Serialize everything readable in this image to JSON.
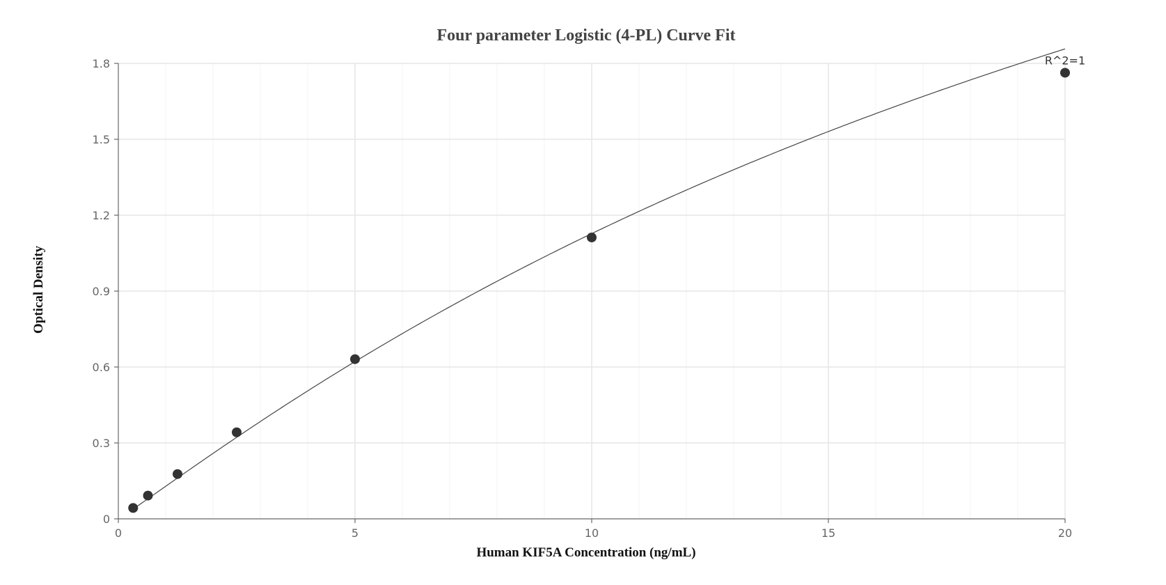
{
  "chart_data": {
    "type": "scatter",
    "title": "Four parameter Logistic (4-PL) Curve Fit",
    "xlabel": "Human KIF5A Concentration (ng/mL)",
    "ylabel": "Optical Density",
    "xlim": [
      0,
      20
    ],
    "ylim": [
      0,
      1.8
    ],
    "xticks": [
      0,
      5,
      10,
      15,
      20
    ],
    "yticks": [
      0,
      0.3,
      0.6,
      0.9,
      1.2,
      1.5,
      1.8
    ],
    "ytick_labels": [
      "0",
      "0.3",
      "0.6",
      "0.9",
      "1.2",
      "1.5",
      "1.8"
    ],
    "grid": true,
    "points": [
      {
        "x": 0.3125,
        "y": 0.043
      },
      {
        "x": 0.625,
        "y": 0.092
      },
      {
        "x": 1.25,
        "y": 0.177
      },
      {
        "x": 2.5,
        "y": 0.342
      },
      {
        "x": 5,
        "y": 0.631
      },
      {
        "x": 10,
        "y": 1.112
      },
      {
        "x": 20,
        "y": 1.763
      }
    ],
    "fit_curve": {
      "model": "4PL",
      "params": {
        "A": 0.0,
        "B": 1.05,
        "C": 30.0,
        "D": 4.7
      }
    },
    "annotation": {
      "text": "R^2=1",
      "x": 20,
      "y": 1.763
    },
    "colors": {
      "point": "#333333",
      "curve": "#444444",
      "grid": "#e6e6e6",
      "minor_grid": "#f3f3f3",
      "axis": "#666666"
    }
  }
}
